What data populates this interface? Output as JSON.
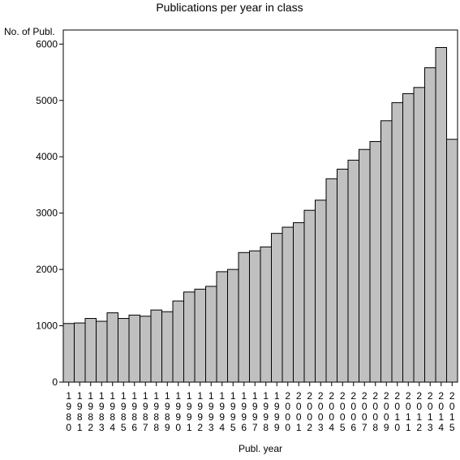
{
  "chart_data": {
    "type": "bar",
    "title": "Publications per year in class",
    "xlabel": "Publ. year",
    "ylabel": "No. of Publ.",
    "ylim": [
      0,
      6250
    ],
    "yticks": [
      0,
      1000,
      2000,
      3000,
      4000,
      5000,
      6000
    ],
    "grid": false,
    "categories": [
      "1980",
      "1981",
      "1982",
      "1983",
      "1984",
      "1985",
      "1986",
      "1987",
      "1988",
      "1989",
      "1990",
      "1991",
      "1992",
      "1993",
      "1994",
      "1995",
      "1996",
      "1997",
      "1998",
      "1999",
      "2000",
      "2001",
      "2002",
      "2003",
      "2004",
      "2005",
      "2006",
      "2007",
      "2008",
      "2009",
      "2010",
      "2011",
      "2012",
      "2013",
      "2014",
      "2015"
    ],
    "values": [
      1040,
      1050,
      1130,
      1080,
      1230,
      1130,
      1190,
      1170,
      1280,
      1250,
      1440,
      1600,
      1650,
      1700,
      1960,
      2000,
      2300,
      2330,
      2400,
      2640,
      2750,
      2830,
      3050,
      3230,
      3610,
      3780,
      3940,
      4130,
      4270,
      4640,
      4960,
      5120,
      5230,
      5580,
      5940,
      4310
    ],
    "colors": {
      "bar_fill": "#c0c0c0",
      "bar_stroke": "#000000"
    }
  }
}
